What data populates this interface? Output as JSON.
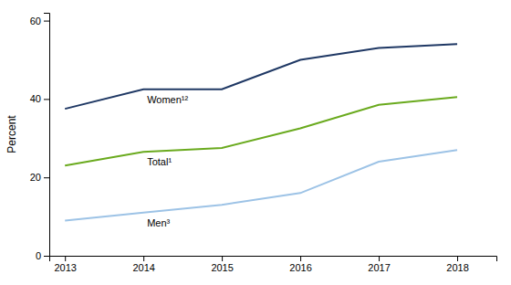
{
  "chart_data": {
    "type": "line",
    "x": [
      2013,
      2014,
      2015,
      2016,
      2017,
      2018
    ],
    "series": [
      {
        "name": "Women¹²",
        "color": "#1f3864",
        "values": [
          37.5,
          42.5,
          42.5,
          50.0,
          53.0,
          54.0
        ]
      },
      {
        "name": "Total¹",
        "color": "#6aaa1e",
        "values": [
          23.0,
          26.5,
          27.5,
          32.5,
          38.5,
          40.5
        ]
      },
      {
        "name": "Men³",
        "color": "#9dc3e6",
        "values": [
          9.0,
          11.0,
          13.0,
          16.0,
          24.0,
          27.0
        ]
      }
    ],
    "ylabel": "Percent",
    "xlim": [
      2012.8,
      2018.5
    ],
    "xticks": [
      2013,
      2014,
      2015,
      2016,
      2017,
      2018
    ],
    "ylim": [
      0,
      62
    ],
    "yticks": [
      0,
      20,
      40,
      60
    ],
    "grid": false
  }
}
